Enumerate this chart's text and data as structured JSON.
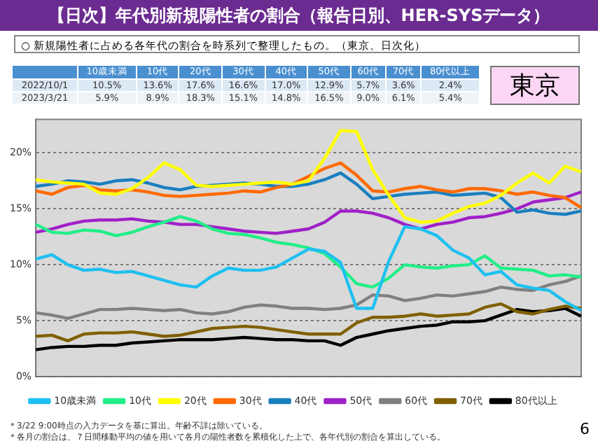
{
  "chart_data": {
    "type": "line",
    "title": "【日次】年代別新規陽性者の割合（報告日別、HER-SYSデータ）",
    "subtitle": "○ 新規陽性者に占める各年代の割合を時系列で整理したもの。（東京、日次化）",
    "categories": [
      null,
      null,
      null,
      null,
      null,
      null,
      null,
      null,
      null,
      null,
      null,
      null,
      null,
      null,
      null,
      null,
      null,
      null,
      null,
      null,
      null,
      null,
      null,
      null,
      null,
      null,
      null,
      null,
      null,
      null,
      null,
      null,
      null,
      null,
      null
    ],
    "series": [
      {
        "name": "10歳未満",
        "color": "#1ec0f0",
        "values": [
          10.5,
          10.9,
          10.0,
          9.5,
          9.6,
          9.3,
          9.4,
          9.0,
          8.6,
          8.2,
          8.0,
          9.0,
          9.7,
          9.5,
          9.5,
          9.8,
          10.6,
          11.4,
          11.2,
          10.2,
          6.1,
          6.1,
          10.3,
          13.4,
          13.2,
          12.6,
          11.3,
          10.6,
          9.1,
          9.4,
          8.2,
          7.9,
          7.7,
          6.7,
          5.9
        ]
      },
      {
        "name": "10代",
        "color": "#22ee88",
        "values": [
          13.6,
          12.9,
          12.8,
          13.1,
          13.0,
          12.6,
          12.9,
          13.4,
          13.8,
          14.3,
          13.9,
          13.2,
          12.8,
          12.7,
          12.4,
          12.0,
          11.8,
          11.5,
          11.0,
          9.8,
          8.3,
          8.0,
          8.8,
          10.0,
          9.8,
          9.7,
          9.9,
          10.0,
          10.8,
          9.7,
          9.6,
          9.5,
          9.0,
          9.1,
          8.9
        ]
      },
      {
        "name": "20代",
        "color": "#ffff00",
        "values": [
          17.6,
          17.4,
          17.3,
          17.2,
          16.4,
          16.3,
          16.8,
          17.8,
          19.1,
          18.5,
          17.1,
          17.0,
          17.1,
          17.2,
          17.3,
          17.4,
          17.2,
          17.5,
          19.5,
          22.0,
          21.9,
          18.5,
          16.2,
          14.2,
          13.8,
          13.9,
          14.6,
          15.2,
          15.5,
          16.2,
          17.3,
          18.2,
          17.3,
          18.8,
          18.3
        ]
      },
      {
        "name": "30代",
        "color": "#ff6a00",
        "values": [
          16.6,
          16.3,
          16.9,
          17.1,
          16.7,
          16.6,
          16.7,
          16.5,
          16.2,
          16.1,
          16.2,
          16.3,
          16.4,
          16.6,
          16.5,
          16.9,
          17.2,
          17.9,
          18.6,
          19.1,
          18.0,
          16.6,
          16.5,
          16.8,
          17.0,
          16.7,
          16.5,
          16.8,
          16.8,
          16.6,
          16.3,
          16.5,
          16.2,
          16.0,
          15.1
        ]
      },
      {
        "name": "40代",
        "color": "#1a7fc0",
        "values": [
          17.0,
          17.2,
          17.5,
          17.4,
          17.2,
          17.5,
          17.6,
          17.3,
          16.9,
          16.7,
          17.0,
          17.1,
          17.2,
          17.3,
          17.2,
          17.0,
          17.0,
          17.2,
          17.6,
          18.2,
          17.2,
          15.9,
          16.1,
          16.3,
          16.4,
          16.5,
          16.2,
          16.3,
          16.4,
          16.0,
          14.7,
          14.9,
          14.6,
          14.5,
          14.8
        ]
      },
      {
        "name": "50代",
        "color": "#a020c8",
        "values": [
          12.9,
          13.2,
          13.6,
          13.9,
          14.0,
          14.0,
          14.1,
          13.9,
          13.8,
          13.6,
          13.6,
          13.4,
          13.2,
          13.0,
          12.9,
          12.8,
          13.0,
          13.2,
          13.8,
          14.8,
          14.8,
          14.6,
          14.2,
          13.6,
          13.2,
          13.6,
          13.8,
          14.2,
          14.3,
          14.6,
          15.0,
          15.6,
          15.8,
          16.0,
          16.5
        ]
      },
      {
        "name": "60代",
        "color": "#808080",
        "values": [
          5.7,
          5.5,
          5.2,
          5.6,
          6.0,
          6.0,
          6.1,
          6.0,
          5.9,
          6.0,
          5.7,
          5.6,
          5.8,
          6.2,
          6.4,
          6.3,
          6.1,
          6.1,
          6.0,
          6.1,
          6.4,
          7.3,
          7.2,
          6.8,
          7.0,
          7.3,
          7.2,
          7.4,
          7.6,
          8.0,
          7.8,
          7.7,
          8.2,
          8.5,
          9.0
        ]
      },
      {
        "name": "70代",
        "color": "#806000",
        "values": [
          3.6,
          3.7,
          3.2,
          3.8,
          3.9,
          3.9,
          4.0,
          3.8,
          3.6,
          3.7,
          4.0,
          4.3,
          4.4,
          4.5,
          4.4,
          4.2,
          4.0,
          3.8,
          3.8,
          3.8,
          4.8,
          5.3,
          5.3,
          5.4,
          5.6,
          5.4,
          5.5,
          5.6,
          6.2,
          6.5,
          5.8,
          5.6,
          6.0,
          6.3,
          6.1
        ]
      },
      {
        "name": "80代以上",
        "color": "#000000",
        "values": [
          2.4,
          2.6,
          2.7,
          2.7,
          2.8,
          2.8,
          3.0,
          3.1,
          3.2,
          3.3,
          3.3,
          3.3,
          3.4,
          3.5,
          3.4,
          3.3,
          3.3,
          3.2,
          3.2,
          2.8,
          3.5,
          3.8,
          4.1,
          4.3,
          4.5,
          4.6,
          4.9,
          4.9,
          5.0,
          5.5,
          6.0,
          5.8,
          5.9,
          6.1,
          5.4
        ]
      }
    ],
    "ylim": [
      0,
      23
    ],
    "yticks": [
      {
        "value": 0,
        "label": "0%"
      },
      {
        "value": 5,
        "label": "5%"
      },
      {
        "value": 10,
        "label": "10%"
      },
      {
        "value": 15,
        "label": "15%"
      },
      {
        "value": 20,
        "label": "20%"
      }
    ],
    "grid": "y",
    "legend": "bottom",
    "marker": "none",
    "line_style": "solid",
    "annotations": [
      "東京",
      "2022/10/1",
      "10.5%",
      "13.6%",
      "17.6%",
      "16.6%",
      "17.0%",
      "12.9%",
      "5.7%",
      "3.6%",
      "2.4%",
      "2023/3/21",
      "5.9%",
      "8.9%",
      "18.3%",
      "15.1%",
      "14.8%",
      "16.5%",
      "9.0%",
      "6.1%",
      "5.4%",
      "＊3/22 9:00時点の入力データを基に算出。年齢不詳は除いている。",
      "＊各月の割合は、７日間移動平均の値を用いて各月の陽性者数を累積化した上で、各年代別の割合を算出している。",
      "6"
    ]
  }
}
